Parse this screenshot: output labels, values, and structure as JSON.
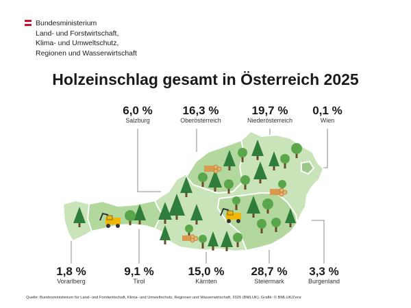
{
  "ministry": {
    "lines": [
      "Bundesministerium",
      "Land- und Forstwirtschaft,",
      "Klima- und Umweltschutz,",
      "Regionen und Wasserwirtschaft"
    ],
    "flag_colors": [
      "#c8102e",
      "#ffffff",
      "#c8102e"
    ]
  },
  "title": "Holzeinschlag gesamt in Österreich 2025",
  "states_top": [
    {
      "pct": "6,0 %",
      "name": "Salzburg"
    },
    {
      "pct": "16,3 %",
      "name": "Oberösterreich"
    },
    {
      "pct": "19,7 %",
      "name": "Niederösterreich"
    },
    {
      "pct": "0,1 %",
      "name": "Wien"
    }
  ],
  "states_bottom": [
    {
      "pct": "1,8 %",
      "name": "Vorarlberg"
    },
    {
      "pct": "9,1 %",
      "name": "Tirol"
    },
    {
      "pct": "15,0 %",
      "name": "Kärnten"
    },
    {
      "pct": "28,7 %",
      "name": "Steiermark"
    },
    {
      "pct": "3,3 %",
      "name": "Burgenland"
    }
  ],
  "colors": {
    "map_light": "#c9e4b8",
    "map_mid": "#b3d89e",
    "tree_dark": "#2f7d3a",
    "tree_light": "#5aa64a",
    "wood": "#e8b26a",
    "machine": "#f2b705",
    "leader": "#8a8a8a"
  },
  "icons": [
    "conifer-tree-icon",
    "deciduous-tree-icon",
    "log-pile-icon",
    "harvester-icon"
  ],
  "footer": "Quelle: Bundesministerium für Land- und Forstwirtschaft, Klima- und Umweltschutz, Regionen und Wasserwirtschaft, 2026 (BMLUK). Grafik: © BMLUK/Zenz"
}
